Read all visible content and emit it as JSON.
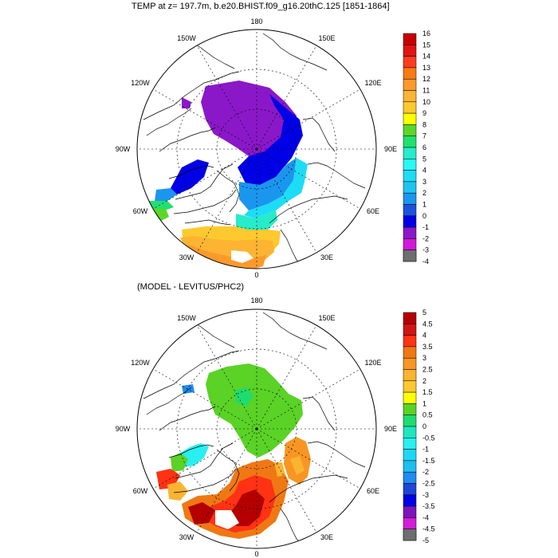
{
  "panel1": {
    "title": "TEMP at z= 197.7m, b.e20.BHIST.f09_g16.20thC.125 [1851-1864]",
    "lon_labels": [
      "180",
      "150W",
      "150E",
      "120W",
      "120E",
      "90W",
      "90E",
      "60W",
      "60E",
      "30W",
      "30E",
      "0"
    ],
    "colorbar": {
      "labels": [
        "16",
        "15",
        "14",
        "13",
        "12",
        "11",
        "10",
        "9",
        "8",
        "7",
        "6",
        "5",
        "4",
        "3",
        "2",
        "1",
        "0",
        "-1",
        "-2",
        "-3",
        "-4"
      ],
      "colors": [
        "#c80000",
        "#e11414",
        "#ff3c1e",
        "#f87a10",
        "#fb9a2b",
        "#fcb432",
        "#fdc92f",
        "#ffff00",
        "#5bd629",
        "#21e06e",
        "#26ecc9",
        "#2cf7f7",
        "#1ddcf5",
        "#1ec4f0",
        "#1b96ef",
        "#1c52dc",
        "#0000e6",
        "#8a18c8",
        "#d21ad8",
        "#d4d4d4",
        "#6e6e6e"
      ]
    }
  },
  "panel2": {
    "title": "(MODEL - LEVITUS/PHC2)",
    "lon_labels": [
      "180",
      "150W",
      "150E",
      "120W",
      "120E",
      "90W",
      "90E",
      "60W",
      "60E",
      "30W",
      "30E",
      "0"
    ],
    "colorbar": {
      "labels": [
        "5",
        "4.5",
        "4",
        "3.5",
        "3",
        "2.5",
        "2",
        "1.5",
        "1",
        "0.5",
        "0",
        "-0.5",
        "-1",
        "-1.5",
        "-2",
        "-2.5",
        "-3",
        "-3.5",
        "-4",
        "-4.5",
        "-5"
      ],
      "colors": [
        "#b40000",
        "#d21414",
        "#ff3214",
        "#f07814",
        "#f79623",
        "#fab432",
        "#fdc82f",
        "#ffff00",
        "#5ad226",
        "#1edc6e",
        "#1ee6be",
        "#28f0f0",
        "#1ed7f5",
        "#1ebef0",
        "#1e8cf0",
        "#1e46d7",
        "#0000e6",
        "#7d14be",
        "#d21ed7",
        "#d2d2d2",
        "#6e6e6e"
      ]
    }
  }
}
